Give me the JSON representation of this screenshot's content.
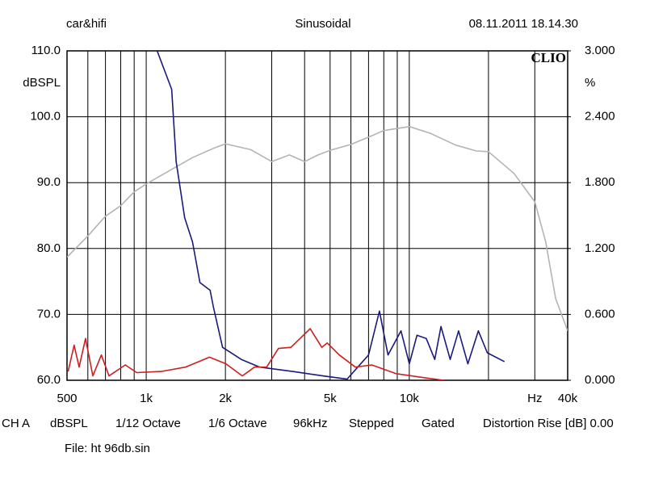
{
  "header": {
    "left": "car&hifi",
    "center": "Sinusoidal",
    "right": "08.11.2011 18.14.30",
    "logo": "CLIO"
  },
  "footer": {
    "items": [
      "CH A",
      "dBSPL",
      "1/12 Octave",
      "1/6 Octave",
      "96kHz",
      "Stepped",
      "Gated",
      "Distortion Rise [dB] 0.00"
    ],
    "file": "File: ht 96db.sin"
  },
  "chart_data": {
    "type": "line",
    "xlog": true,
    "grid": true,
    "ylabel": "dBSPL",
    "y2label": "%",
    "xlim": [
      500,
      40000
    ],
    "ylim": [
      60,
      110
    ],
    "y2lim": [
      0,
      3
    ],
    "xticks": [
      500,
      {
        "value": 1000,
        "label": "1k"
      },
      {
        "value": 2000,
        "label": "2k"
      },
      {
        "value": 5000,
        "label": "5k"
      },
      {
        "value": 10000,
        "label": "10k"
      },
      {
        "value": 30000,
        "label": "Hz"
      },
      {
        "value": 40000,
        "label": "40k"
      }
    ],
    "xminor": [
      600,
      700,
      800,
      900,
      3000,
      4000,
      6000,
      7000,
      8000,
      9000,
      20000
    ],
    "yticks": [
      {
        "value": 60,
        "label": "60.0"
      },
      {
        "value": 70,
        "label": "70.0"
      },
      {
        "value": 80,
        "label": "80.0"
      },
      {
        "value": 90,
        "label": "90.0"
      },
      {
        "value": 100,
        "label": "100.0"
      },
      {
        "value": 110,
        "label": "110.0"
      }
    ],
    "y2ticks": [
      {
        "value": 0,
        "label": "0.000"
      },
      {
        "value": 0.6,
        "label": "0.600"
      },
      {
        "value": 1.2,
        "label": "1.200"
      },
      {
        "value": 1.8,
        "label": "1.800"
      },
      {
        "value": 2.4,
        "label": "2.400"
      },
      {
        "value": 3,
        "label": "3.000"
      }
    ],
    "series": [
      {
        "color": "#b4b4b4",
        "axis": "y",
        "x": [
          500,
          600,
          700,
          800,
          900,
          1000,
          1200,
          1500,
          1800,
          2000,
          2500,
          3000,
          3500,
          4000,
          4500,
          5000,
          6000,
          7000,
          8000,
          10000,
          12000,
          15000,
          18000,
          20000,
          25000,
          30000,
          33000,
          36000,
          40000
        ],
        "values": [
          78.7,
          81.9,
          84.9,
          86.5,
          88.6,
          89.8,
          91.6,
          93.8,
          95.2,
          95.9,
          95.0,
          93.2,
          94.2,
          93.2,
          94.2,
          94.9,
          95.8,
          96.9,
          97.9,
          98.5,
          97.5,
          95.7,
          94.8,
          94.7,
          91.4,
          87.1,
          81.0,
          72.4,
          67.5
        ]
      },
      {
        "color": "#1a1a7a",
        "axis": "y2",
        "x": [
          1100,
          1250,
          1300,
          1400,
          1500,
          1600,
          1750,
          1800,
          1950,
          2300,
          2700,
          3600,
          4700,
          5800,
          7000,
          7700,
          8300,
          9300,
          10000,
          10700,
          11600,
          12500,
          13200,
          14300,
          15400,
          16700,
          18300,
          19800,
          23000
        ],
        "values": [
          3.0,
          2.65,
          1.99,
          1.48,
          1.26,
          0.89,
          0.82,
          0.67,
          0.3,
          0.19,
          0.12,
          0.08,
          0.04,
          0.01,
          0.23,
          0.63,
          0.23,
          0.45,
          0.15,
          0.41,
          0.38,
          0.19,
          0.49,
          0.19,
          0.45,
          0.15,
          0.45,
          0.25,
          0.17
        ]
      },
      {
        "color": "#cc2020",
        "axis": "y2",
        "x": [
          505,
          532,
          556,
          588,
          627,
          675,
          722,
          833,
          920,
          1140,
          1410,
          1740,
          2010,
          2320,
          2580,
          2870,
          3180,
          3550,
          4200,
          4650,
          4880,
          5420,
          6240,
          7200,
          8900,
          10900,
          13500
        ],
        "values": [
          0.08,
          0.32,
          0.12,
          0.38,
          0.04,
          0.23,
          0.04,
          0.14,
          0.07,
          0.08,
          0.12,
          0.21,
          0.15,
          0.04,
          0.12,
          0.12,
          0.29,
          0.3,
          0.47,
          0.3,
          0.34,
          0.23,
          0.12,
          0.14,
          0.06,
          0.03,
          0
        ]
      }
    ]
  }
}
